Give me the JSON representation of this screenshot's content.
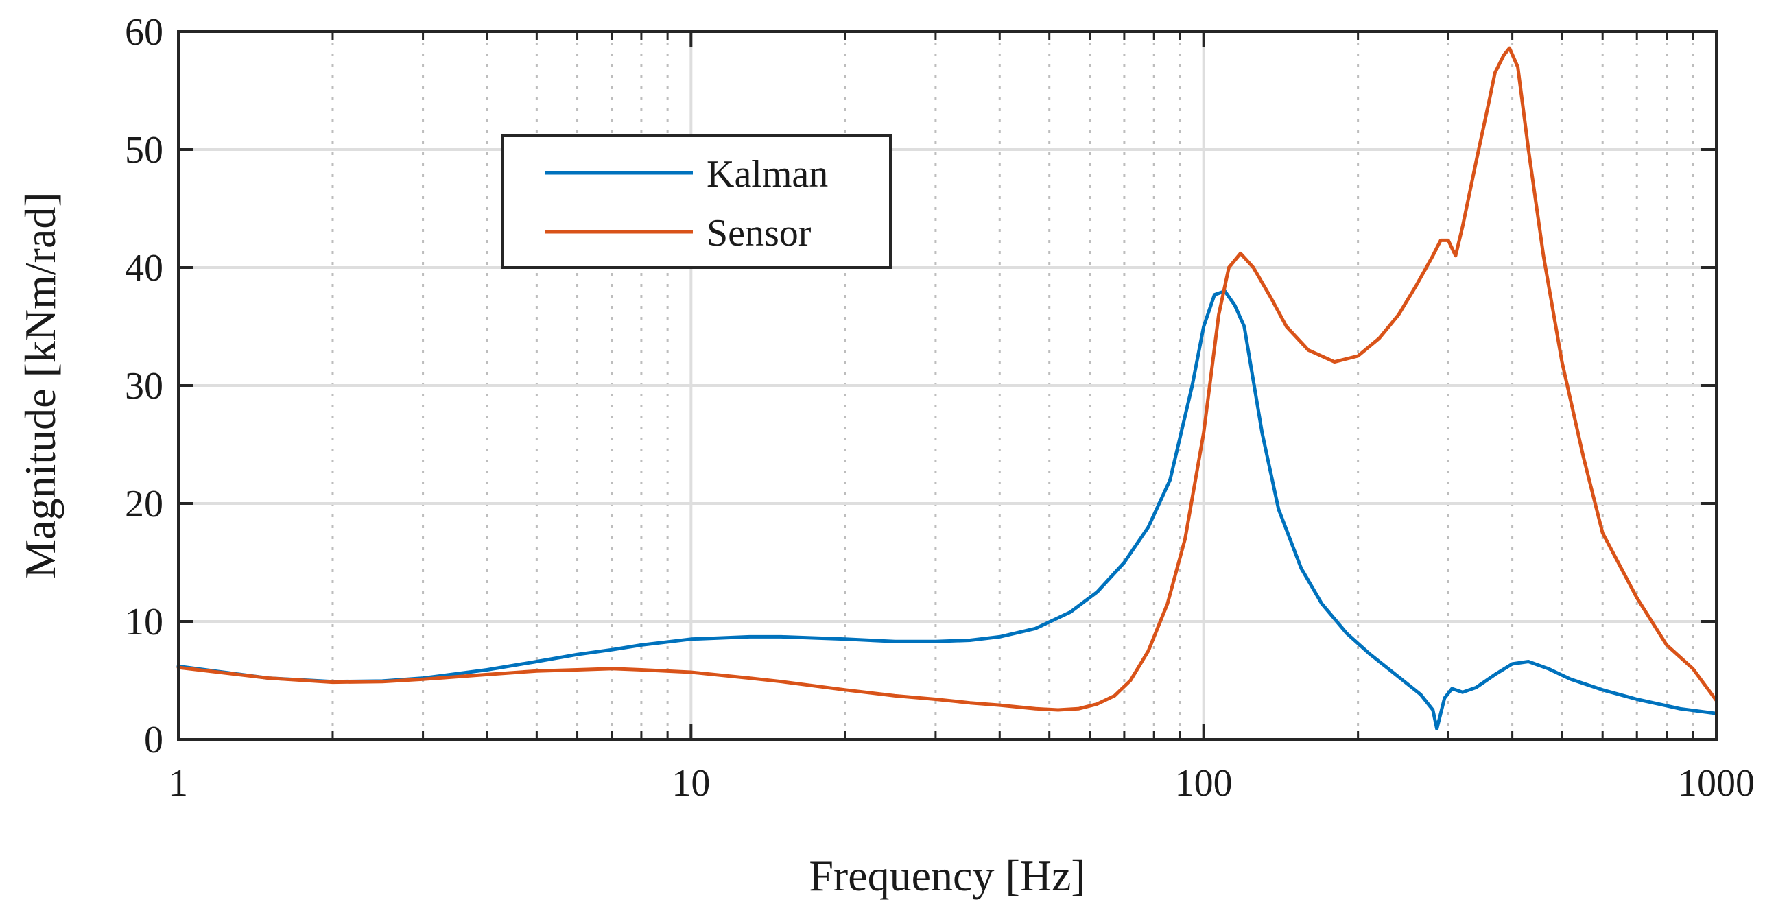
{
  "chart_data": {
    "type": "line",
    "title": "",
    "xlabel": "Frequency [Hz]",
    "ylabel": "Magnitude [kNm/rad]",
    "xscale": "log",
    "xlim": [
      1,
      1000
    ],
    "ylim": [
      0,
      60
    ],
    "x_ticks": [
      1,
      10,
      100,
      1000
    ],
    "x_tick_labels": [
      "1",
      "10",
      "100",
      "1000"
    ],
    "y_ticks": [
      0,
      10,
      20,
      30,
      40,
      50,
      60
    ],
    "y_tick_labels": [
      "0",
      "10",
      "20",
      "30",
      "40",
      "50",
      "60"
    ],
    "grid": true,
    "legend": {
      "position": "upper-left-center",
      "entries": [
        "Kalman",
        "Sensor"
      ]
    },
    "series": [
      {
        "name": "Kalman",
        "color": "#0072BD",
        "x": [
          1,
          1.5,
          2,
          2.5,
          3,
          4,
          5,
          6,
          7,
          8,
          10,
          13,
          15,
          20,
          25,
          30,
          35,
          40,
          47,
          55,
          62,
          70,
          78,
          86,
          95,
          100,
          105,
          110,
          115,
          120,
          130,
          140,
          155,
          170,
          190,
          210,
          240,
          265,
          280,
          285,
          295,
          305,
          320,
          340,
          370,
          400,
          430,
          470,
          520,
          600,
          700,
          850,
          1000
        ],
        "values": [
          6.2,
          5.2,
          4.9,
          4.95,
          5.2,
          5.9,
          6.6,
          7.2,
          7.6,
          8.0,
          8.5,
          8.7,
          8.7,
          8.5,
          8.3,
          8.3,
          8.4,
          8.7,
          9.4,
          10.8,
          12.5,
          15.0,
          18.0,
          22.0,
          30.0,
          35.0,
          37.7,
          38.0,
          36.8,
          35.0,
          26.0,
          19.5,
          14.5,
          11.5,
          9.0,
          7.3,
          5.3,
          3.8,
          2.5,
          0.9,
          3.5,
          4.3,
          4.0,
          4.4,
          5.5,
          6.4,
          6.6,
          6.0,
          5.1,
          4.2,
          3.4,
          2.6,
          2.2
        ]
      },
      {
        "name": "Sensor",
        "color": "#D95319",
        "x": [
          1,
          1.5,
          2,
          2.5,
          3,
          4,
          5,
          6,
          7,
          8,
          10,
          13,
          15,
          20,
          25,
          30,
          35,
          40,
          47,
          52,
          57,
          62,
          67,
          72,
          78,
          85,
          92,
          100,
          107,
          112,
          118,
          125,
          135,
          145,
          160,
          180,
          200,
          220,
          240,
          260,
          280,
          290,
          300,
          310,
          320,
          340,
          360,
          370,
          385,
          395,
          410,
          430,
          460,
          500,
          550,
          600,
          700,
          800,
          900,
          1000
        ],
        "values": [
          6.1,
          5.2,
          4.85,
          4.9,
          5.1,
          5.5,
          5.8,
          5.9,
          6.0,
          5.9,
          5.7,
          5.2,
          4.9,
          4.2,
          3.7,
          3.4,
          3.1,
          2.9,
          2.6,
          2.5,
          2.6,
          3.0,
          3.7,
          5.0,
          7.5,
          11.5,
          17.0,
          26.0,
          36.0,
          40.0,
          41.2,
          40.0,
          37.5,
          35.0,
          33.0,
          32.0,
          32.5,
          34.0,
          36.0,
          38.5,
          41.0,
          42.3,
          42.3,
          41.0,
          43.5,
          49.0,
          54.0,
          56.5,
          58.0,
          58.6,
          57.0,
          50.0,
          41.0,
          32.0,
          24.0,
          17.5,
          12.0,
          8.0,
          6.0,
          3.3
        ]
      }
    ]
  }
}
